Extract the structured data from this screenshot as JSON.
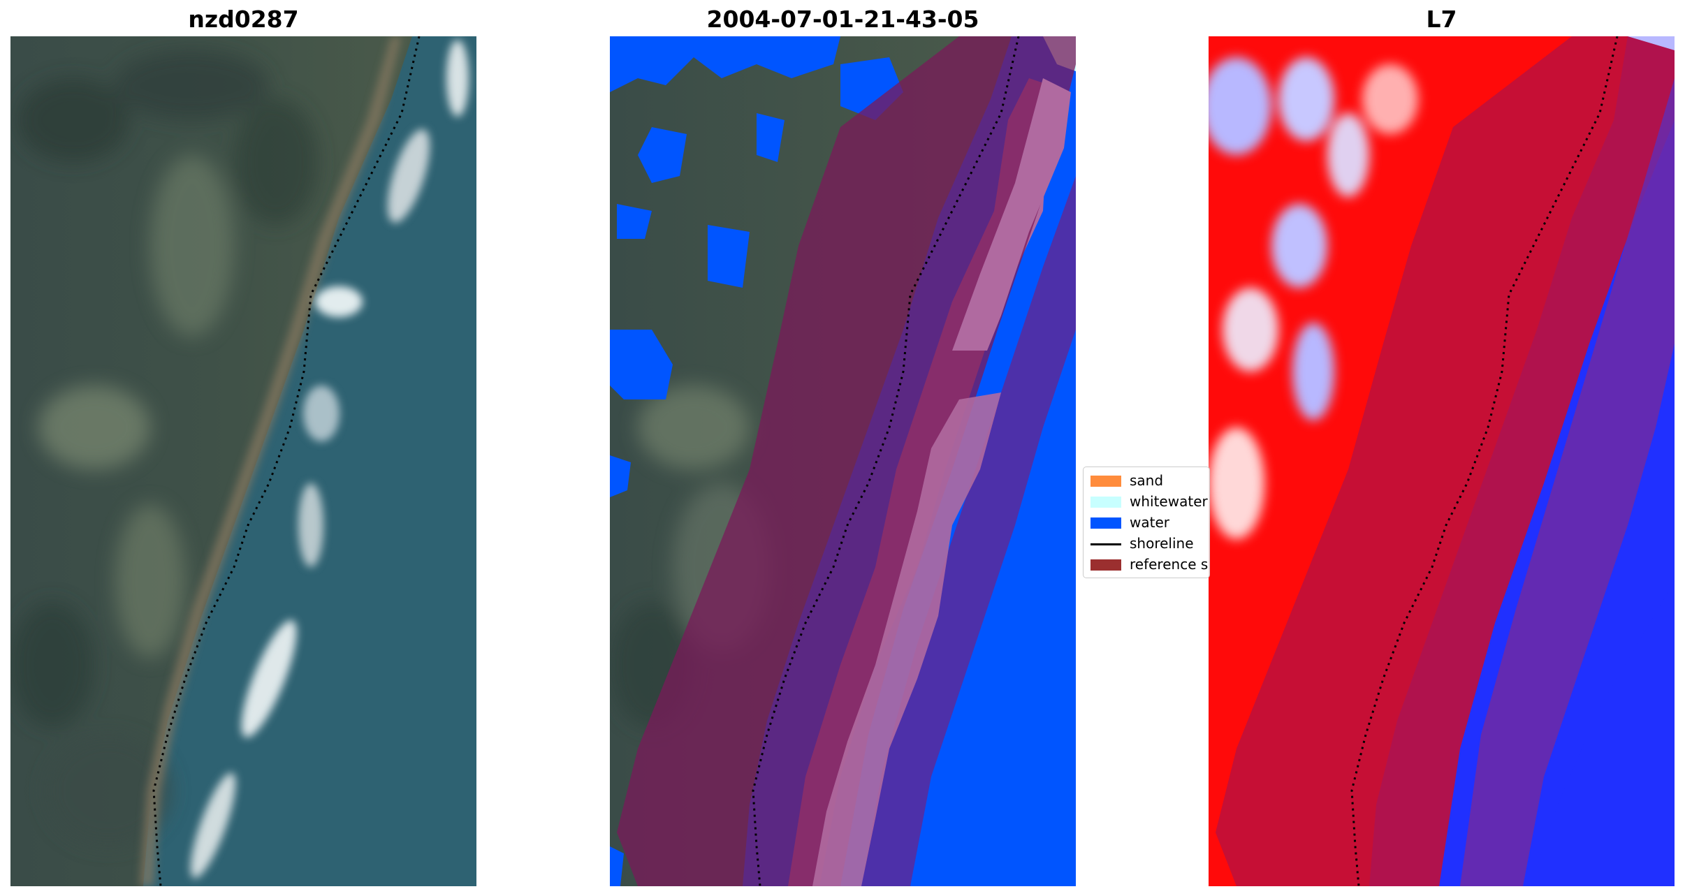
{
  "panels": [
    {
      "title": "nzd0287"
    },
    {
      "title": "2004-07-01-21-43-05"
    },
    {
      "title": "L7"
    }
  ],
  "legend": {
    "items": [
      {
        "label": "sand",
        "color": "#ff8c3c",
        "kind": "patch"
      },
      {
        "label": "whitewater",
        "color": "#c8ffff",
        "kind": "patch"
      },
      {
        "label": "water",
        "color": "#0055ff",
        "kind": "patch"
      },
      {
        "label": "shoreline",
        "color": "#000000",
        "kind": "line"
      },
      {
        "label": "reference shoreline buffer",
        "color": "#9b2f2f",
        "kind": "patch"
      }
    ]
  },
  "colors": {
    "water_class": "#0055ff",
    "whitewater_class": "#c8ffff",
    "buffer_overlay": "#8b1a3a",
    "sea_rgb": "#2f6070",
    "land_rgb": "#3a4a44"
  }
}
